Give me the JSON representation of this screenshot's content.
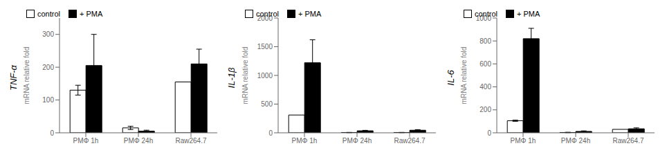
{
  "chart_data": [
    {
      "type": "bar",
      "title": "TNF-α",
      "ylabel": "mRNA relative fold",
      "categories": [
        "PMΦ 1h",
        "PMΦ 24h",
        "Raw264.7"
      ],
      "series": [
        {
          "name": "control",
          "color": "white",
          "values": [
            130,
            15,
            155
          ],
          "error": [
            15,
            5,
            0
          ]
        },
        {
          "name": "+ PMA",
          "color": "black",
          "values": [
            205,
            5,
            210
          ],
          "error": [
            95,
            3,
            45
          ]
        }
      ],
      "ylim": [
        0,
        350
      ],
      "yticks": [
        0,
        100,
        200,
        300
      ],
      "legend": "upper left"
    },
    {
      "type": "bar",
      "title": "IL-1β",
      "ylabel": "mRNA relative fold",
      "categories": [
        "PMΦ 1h",
        "PMΦ 24h",
        "Raw264.7"
      ],
      "series": [
        {
          "name": "control",
          "color": "white",
          "values": [
            310,
            5,
            5
          ],
          "error": [
            0,
            3,
            3
          ]
        },
        {
          "name": "+ PMA",
          "color": "black",
          "values": [
            1220,
            35,
            45
          ],
          "error": [
            400,
            8,
            10
          ]
        }
      ],
      "ylim": [
        0,
        2000
      ],
      "yticks": [
        0,
        500,
        1000,
        1500,
        2000
      ],
      "legend": "upper left"
    },
    {
      "type": "bar",
      "title": "IL-6",
      "ylabel": "mRNA relative fold",
      "categories": [
        "PMΦ 1h",
        "PMΦ 24h",
        "Raw264.7"
      ],
      "series": [
        {
          "name": "control",
          "color": "white",
          "values": [
            105,
            3,
            30
          ],
          "error": [
            5,
            2,
            0
          ]
        },
        {
          "name": "+ PMA",
          "color": "black",
          "values": [
            820,
            12,
            35
          ],
          "error": [
            90,
            5,
            8
          ]
        }
      ],
      "ylim": [
        0,
        1000
      ],
      "yticks": [
        0,
        200,
        400,
        600,
        800,
        1000
      ],
      "legend": "upper left"
    }
  ]
}
